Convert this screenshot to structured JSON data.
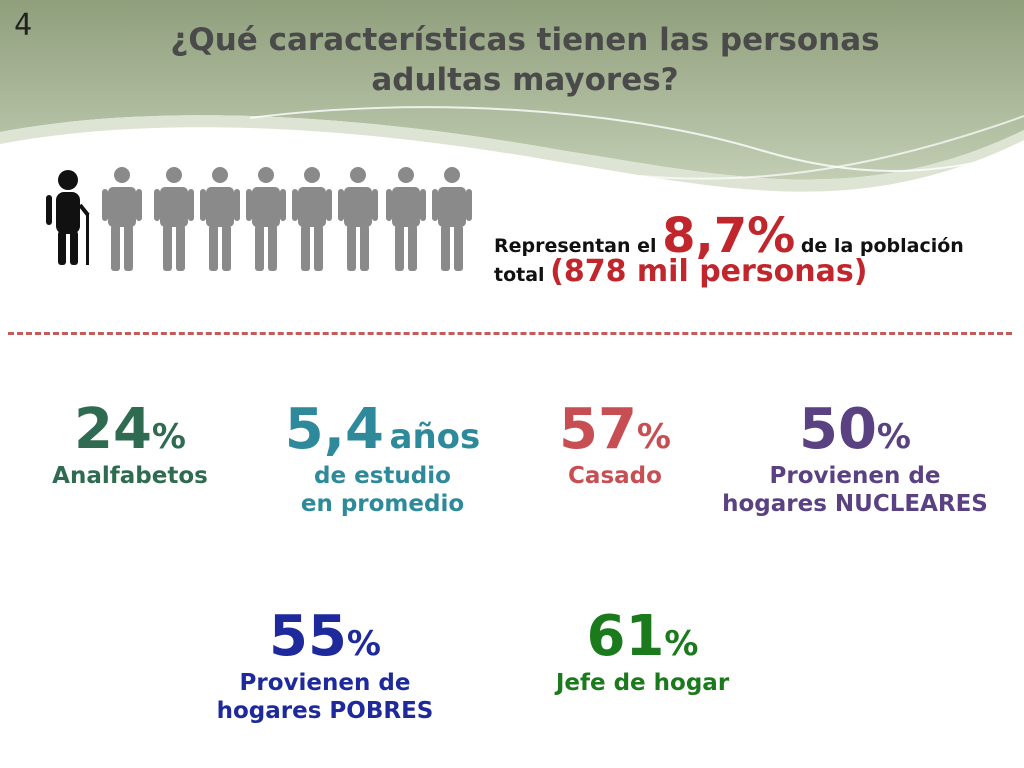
{
  "slide": {
    "number": "4"
  },
  "header": {
    "title_line1": "¿Qué características tienen las personas",
    "title_line2": "adultas mayores?"
  },
  "population": {
    "text1": "Representan el",
    "percent": "8,7%",
    "text2": "de la población",
    "text3": "total",
    "people": "(878 mil personas)"
  },
  "stats": [
    {
      "value": "24",
      "unit": "%",
      "desc_line1": "Analfabetos",
      "desc_line2": ""
    },
    {
      "value": "5,4",
      "unit": "años",
      "desc_line1": "de estudio",
      "desc_line2": "en promedio"
    },
    {
      "value": "57",
      "unit": "%",
      "desc_line1": "Casado",
      "desc_line2": ""
    },
    {
      "value": "50",
      "unit": "%",
      "desc_line1": "Provienen de",
      "desc_line2": "hogares NUCLEARES"
    },
    {
      "value": "55",
      "unit": "%",
      "desc_line1": "Provienen de",
      "desc_line2": "hogares POBRES"
    },
    {
      "value": "61",
      "unit": "%",
      "desc_line1": "Jefe de hogar",
      "desc_line2": ""
    }
  ],
  "colors": {
    "header_band": "#a7b796",
    "highlight_red": "#c0262c",
    "person_gray": "#8a8a8a"
  },
  "icons": [
    "elderly-person-icon",
    "person-icon"
  ]
}
